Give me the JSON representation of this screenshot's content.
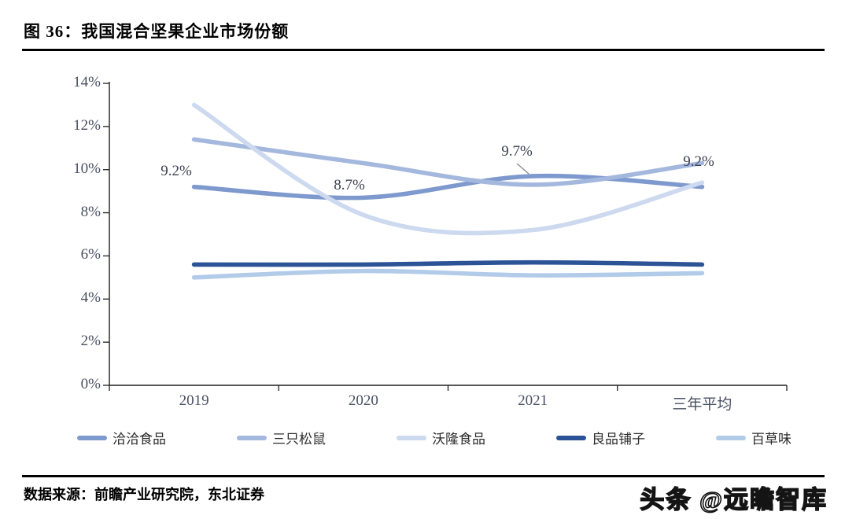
{
  "title": "图 36：我国混合坚果企业市场份额",
  "source_note": "数据来源：前瞻产业研究院，东北证券",
  "watermark": "头条 @远瞻智库",
  "chart_data": {
    "type": "line",
    "line_style": "smooth",
    "grid": false,
    "legend_position": "bottom",
    "title": "我国混合坚果企业市场份额",
    "categories": [
      "2019",
      "2020",
      "2021",
      "三年平均"
    ],
    "ylim": [
      0,
      14
    ],
    "y_ticks": [
      "14%",
      "12%",
      "10%",
      "8%",
      "6%",
      "4%",
      "2%",
      "0%"
    ],
    "series": [
      {
        "name": "洽洽食品",
        "color": "#7e99ce",
        "values": [
          9.2,
          8.7,
          9.7,
          9.2
        ]
      },
      {
        "name": "三只松鼠",
        "color": "#a4b8de",
        "values": [
          11.4,
          10.3,
          9.3,
          10.3
        ]
      },
      {
        "name": "沃隆食品",
        "color": "#ccd9ef",
        "values": [
          13.0,
          7.9,
          7.2,
          9.4
        ]
      },
      {
        "name": "良品铺子",
        "color": "#2c5396",
        "values": [
          5.6,
          5.6,
          5.7,
          5.6
        ]
      },
      {
        "name": "百草味",
        "color": "#b2cbe9",
        "values": [
          5.0,
          5.3,
          5.1,
          5.2
        ]
      }
    ],
    "data_labels": [
      {
        "series": "洽洽食品",
        "category": "2019",
        "text": "9.2%"
      },
      {
        "series": "洽洽食品",
        "category": "2020",
        "text": "8.7%"
      },
      {
        "series": "洽洽食品",
        "category": "2021",
        "text": "9.7%",
        "leader_line": true
      },
      {
        "series": "洽洽食品",
        "category": "三年平均",
        "text": "9.2%"
      }
    ]
  }
}
